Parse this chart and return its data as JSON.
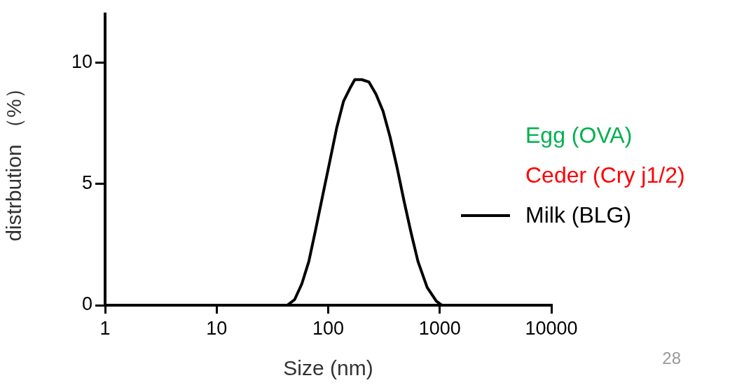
{
  "chart_data": {
    "type": "line",
    "xlabel": "Size (nm)",
    "ylabel": "distrbution （%）",
    "log": "x",
    "xlim": [
      1,
      10000
    ],
    "xticks": [
      1,
      10,
      100,
      1000,
      10000
    ],
    "ylim": [
      0,
      12
    ],
    "yticks": [
      0,
      5,
      10
    ],
    "grid": false,
    "legend": "right",
    "marker": "none",
    "line_style": "solid",
    "annotations": [
      "28"
    ],
    "series": [
      {
        "name": "Egg (OVA)",
        "color": "#00b050"
      },
      {
        "name": "Ceder (Cry j1/2)",
        "color": "#ff0000"
      },
      {
        "name": "Milk (BLG)",
        "color": "#000000",
        "x": [
          1,
          10,
          43,
          50,
          58,
          67,
          77,
          89,
          103,
          119,
          137,
          159,
          173,
          200,
          232,
          268,
          310,
          358,
          413,
          478,
          552,
          638,
          771,
          931,
          1045,
          10000
        ],
        "values": [
          0,
          0,
          0,
          0.23,
          0.88,
          1.8,
          3.1,
          4.5,
          5.9,
          7.3,
          8.4,
          9.0,
          9.3,
          9.3,
          9.2,
          8.7,
          8.0,
          6.95,
          5.7,
          4.3,
          3.0,
          1.8,
          0.73,
          0.17,
          0,
          0
        ]
      }
    ]
  }
}
